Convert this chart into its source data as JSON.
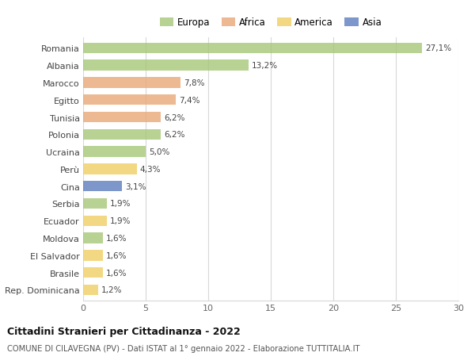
{
  "categories": [
    "Romania",
    "Albania",
    "Marocco",
    "Egitto",
    "Tunisia",
    "Polonia",
    "Ucraina",
    "Perù",
    "Cina",
    "Serbia",
    "Ecuador",
    "Moldova",
    "El Salvador",
    "Brasile",
    "Rep. Dominicana"
  ],
  "values": [
    27.1,
    13.2,
    7.8,
    7.4,
    6.2,
    6.2,
    5.0,
    4.3,
    3.1,
    1.9,
    1.9,
    1.6,
    1.6,
    1.6,
    1.2
  ],
  "labels": [
    "27,1%",
    "13,2%",
    "7,8%",
    "7,4%",
    "6,2%",
    "6,2%",
    "5,0%",
    "4,3%",
    "3,1%",
    "1,9%",
    "1,9%",
    "1,6%",
    "1,6%",
    "1,6%",
    "1,2%"
  ],
  "continents": [
    "Europa",
    "Europa",
    "Africa",
    "Africa",
    "Africa",
    "Europa",
    "Europa",
    "America",
    "Asia",
    "Europa",
    "America",
    "Europa",
    "America",
    "America",
    "America"
  ],
  "colors": {
    "Europa": "#a8c87a",
    "Africa": "#e8aa7a",
    "America": "#f0d068",
    "Asia": "#6080c0"
  },
  "legend_order": [
    "Europa",
    "Africa",
    "America",
    "Asia"
  ],
  "title": "Cittadini Stranieri per Cittadinanza - 2022",
  "subtitle": "COMUNE DI CILAVEGNA (PV) - Dati ISTAT al 1° gennaio 2022 - Elaborazione TUTTITALIA.IT",
  "xlim": [
    0,
    30
  ],
  "xticks": [
    0,
    5,
    10,
    15,
    20,
    25,
    30
  ],
  "background_color": "#ffffff",
  "grid_color": "#d8d8d8",
  "bar_alpha": 0.82
}
